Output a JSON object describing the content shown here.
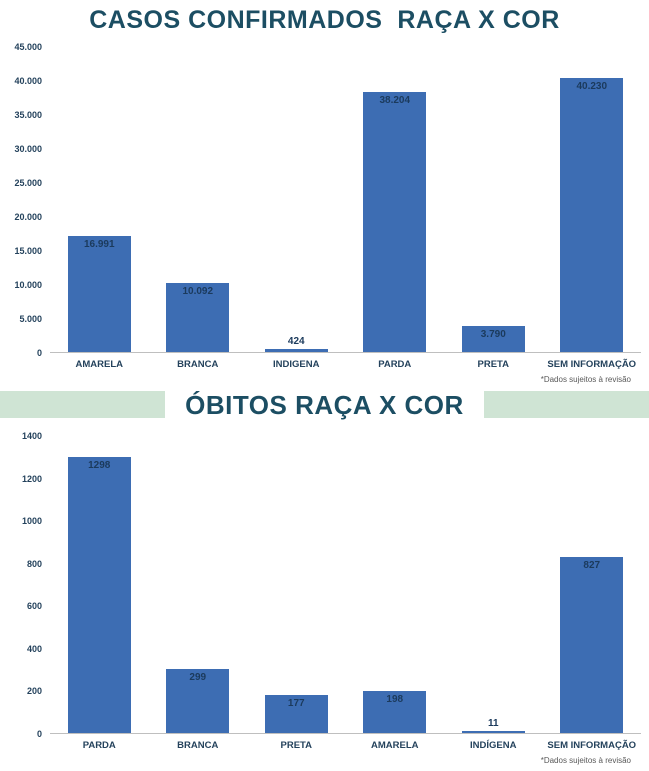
{
  "colors": {
    "bar": "#3d6db3",
    "title": "#1c4e63",
    "band": "#cfe4d4",
    "axis_label": "#24425c",
    "value_label": "#1b3a5c",
    "footnote": "#595959"
  },
  "chart_data": [
    {
      "type": "bar",
      "title": "CASOS CONFIRMADOS  RAÇA X COR",
      "categories": [
        "AMARELA",
        "BRANCA",
        "INDIGENA",
        "PARDA",
        "PRETA",
        "SEM INFORMAÇÃO"
      ],
      "values": [
        16991,
        10092,
        424,
        38204,
        3790,
        40230
      ],
      "value_labels": [
        "16.991",
        "10.092",
        "424",
        "38.204",
        "3.790",
        "40.230"
      ],
      "ylim": [
        0,
        45000
      ],
      "ytick_step": 5000,
      "ytick_labels": [
        "0",
        "5.000",
        "10.000",
        "15.000",
        "20.000",
        "25.000",
        "30.000",
        "35.000",
        "40.000",
        "45.000"
      ],
      "grid": false,
      "legend": "none",
      "footnote": "*Dados sujeitos à revisão"
    },
    {
      "type": "bar",
      "title": "ÓBITOS RAÇA X COR",
      "categories": [
        "PARDA",
        "BRANCA",
        "PRETA",
        "AMARELA",
        "INDÍGENA",
        "SEM INFORMAÇÃO"
      ],
      "values": [
        1298,
        299,
        177,
        198,
        11,
        827
      ],
      "value_labels": [
        "1298",
        "299",
        "177",
        "198",
        "11",
        "827"
      ],
      "ylim": [
        0,
        1400
      ],
      "ytick_step": 200,
      "ytick_labels": [
        "0",
        "200",
        "400",
        "600",
        "800",
        "1000",
        "1200",
        "1400"
      ],
      "grid": false,
      "legend": "none",
      "footnote": "*Dados sujeitos à revisão"
    }
  ]
}
